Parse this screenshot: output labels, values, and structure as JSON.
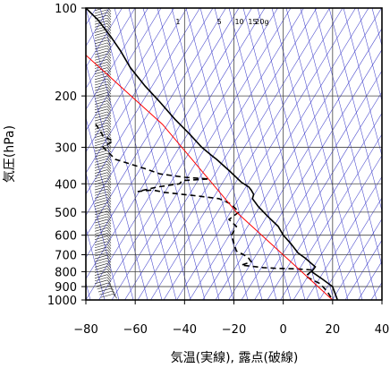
{
  "chart_data": {
    "type": "line",
    "title": "",
    "xlabel": "気温(実線), 露点(破線)",
    "ylabel": "気圧(hPa)",
    "xlim": [
      -80,
      40
    ],
    "ylim": [
      1000,
      100
    ],
    "y_scale": "log",
    "x_ticks": [
      "−80",
      "−60",
      "−40",
      "−20",
      "0",
      "20",
      "40"
    ],
    "y_ticks": [
      {
        "value": 100,
        "label": "100"
      },
      {
        "value": 200,
        "label": "200"
      },
      {
        "value": 300,
        "label": "300"
      },
      {
        "value": 400,
        "label": "400"
      },
      {
        "value": 500,
        "label": "500"
      },
      {
        "value": 600,
        "label": "600"
      },
      {
        "value": 700,
        "label": "700"
      },
      {
        "value": 800,
        "label": "800"
      },
      {
        "value": 900,
        "label": "900"
      },
      {
        "value": 1000,
        "label": "1000"
      }
    ],
    "mixing_ratio_labels": [
      {
        "label": "1",
        "temperature": -42.7
      },
      {
        "label": "5",
        "temperature": -25.9
      },
      {
        "label": "10",
        "temperature": -17.8
      },
      {
        "label": "15",
        "temperature": -12.4
      },
      {
        "label": "20g",
        "temperature": -8.6
      }
    ],
    "grid": true,
    "colors": {
      "temperature": "#000000",
      "dewpoint": "#000000",
      "reference": "#ff0000",
      "background_lines": "#3333cc"
    },
    "series": [
      {
        "style": "solid",
        "x": [
          -80,
          -75,
          -70,
          -66,
          -62,
          -56,
          -50,
          -44,
          -38,
          -33,
          -29,
          -27,
          -22,
          -17,
          -14,
          -13,
          -12,
          -12.5,
          -10,
          -6,
          -2,
          0,
          3,
          6,
          9,
          11,
          13,
          12,
          11.5,
          16,
          20,
          21,
          22
        ],
        "y": [
          100,
          110,
          125,
          140,
          160,
          185,
          210,
          240,
          270,
          300,
          320,
          330,
          360,
          395,
          410,
          420,
          435,
          450,
          480,
          520,
          560,
          600,
          640,
          690,
          720,
          745,
          770,
          790,
          800,
          850,
          900,
          950,
          1000
        ]
      },
      {
        "style": "dashed",
        "x": [
          -76,
          -74,
          -73,
          -69,
          -73,
          -68,
          -56,
          -50,
          -40,
          -30,
          -41,
          -42,
          -51,
          -59,
          -53,
          -48,
          -35,
          -26,
          -21,
          -18,
          -22,
          -19,
          -21,
          -20,
          -19,
          -16,
          -14,
          -13,
          -17,
          -8,
          -2,
          5,
          12,
          9,
          15,
          18,
          20
        ],
        "y": [
          250,
          265,
          275,
          285,
          300,
          330,
          355,
          370,
          380,
          385,
          390,
          400,
          410,
          425,
          420,
          428,
          440,
          450,
          470,
          500,
          530,
          560,
          600,
          640,
          680,
          700,
          720,
          740,
          760,
          775,
          780,
          782,
          790,
          830,
          880,
          940,
          1000
        ]
      },
      {
        "style": "red-reference",
        "x": [
          -80,
          -49,
          -19,
          20
        ],
        "y": [
          145,
          250,
          500,
          1000
        ]
      }
    ]
  }
}
